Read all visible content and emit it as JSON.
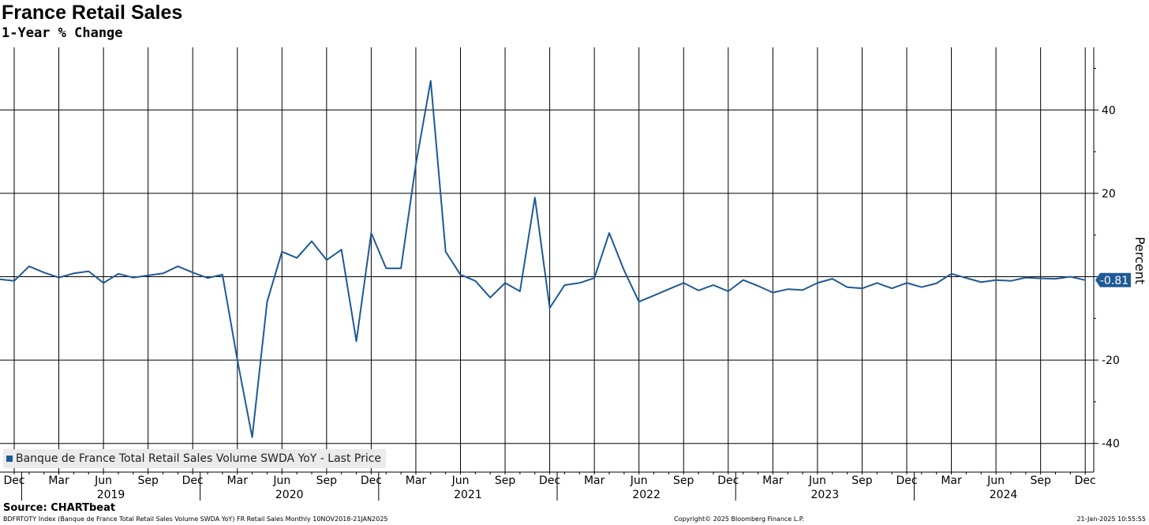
{
  "header": {
    "title": "France Retail Sales",
    "subtitle": "1-Year % Change"
  },
  "source": "Source: CHARTbeat",
  "footer": {
    "left": "BDFRTOTY Index (Banque de France Total Retail Sales Volume SWDA YoY) FR Retail Sales  Monthly 10NOV2018-21JAN2025",
    "middle": "Copyright© 2025 Bloomberg Finance L.P.",
    "right": "21-Jan-2025 10:55:55"
  },
  "legend": {
    "label": "Banque de France Total Retail Sales Volume SWDA YoY - Last Price"
  },
  "last_value_label": "-0.81",
  "colors": {
    "series": "#1f5a96",
    "grid": "#000000",
    "background": "#ffffff"
  },
  "chart_data": {
    "type": "line",
    "title": "France Retail Sales",
    "subtitle": "1-Year % Change",
    "ylabel": "Percent",
    "xlabel": "",
    "ylim": [
      -47,
      55
    ],
    "yticks": [
      -40,
      -20,
      20,
      40
    ],
    "grid": true,
    "legend_position": "bottom-left",
    "x_month_ticks": [
      "Dec",
      "Mar",
      "Jun",
      "Sep",
      "Dec",
      "Mar",
      "Jun",
      "Sep",
      "Dec",
      "Mar",
      "Jun",
      "Sep",
      "Dec",
      "Mar",
      "Jun",
      "Sep",
      "Dec",
      "Mar",
      "Jun",
      "Sep",
      "Dec",
      "Mar",
      "Jun",
      "Sep",
      "Dec"
    ],
    "x_year_labels": [
      "2019",
      "2020",
      "2021",
      "2022",
      "2023",
      "2024"
    ],
    "x_start": "2018-11",
    "series": [
      {
        "name": "Banque de France Total Retail Sales Volume SWDA YoY - Last Price",
        "last_value": -0.81,
        "values": [
          -0.6,
          -1.0,
          2.5,
          1.0,
          -0.2,
          0.8,
          1.3,
          -1.5,
          0.7,
          -0.2,
          0.3,
          0.8,
          2.5,
          1.0,
          -0.3,
          0.5,
          -20.0,
          -38.5,
          -6.0,
          6.0,
          4.5,
          8.5,
          4.0,
          6.5,
          -15.5,
          10.5,
          2.0,
          2.0,
          27.0,
          47.0,
          6.0,
          0.5,
          -1.0,
          -5.0,
          -1.5,
          -3.5,
          19.0,
          -7.5,
          -2.0,
          -1.5,
          -0.3,
          10.5,
          1.5,
          -6.0,
          -4.5,
          -3.0,
          -1.5,
          -3.3,
          -2.0,
          -3.5,
          -0.8,
          -2.2,
          -3.8,
          -3.0,
          -3.2,
          -1.5,
          -0.5,
          -2.5,
          -2.8,
          -1.5,
          -2.8,
          -1.5,
          -2.5,
          -1.6,
          0.7,
          -0.3,
          -1.3,
          -0.8,
          -1.0,
          -0.2,
          -0.4,
          -0.5,
          0.0,
          -0.81
        ]
      }
    ]
  }
}
